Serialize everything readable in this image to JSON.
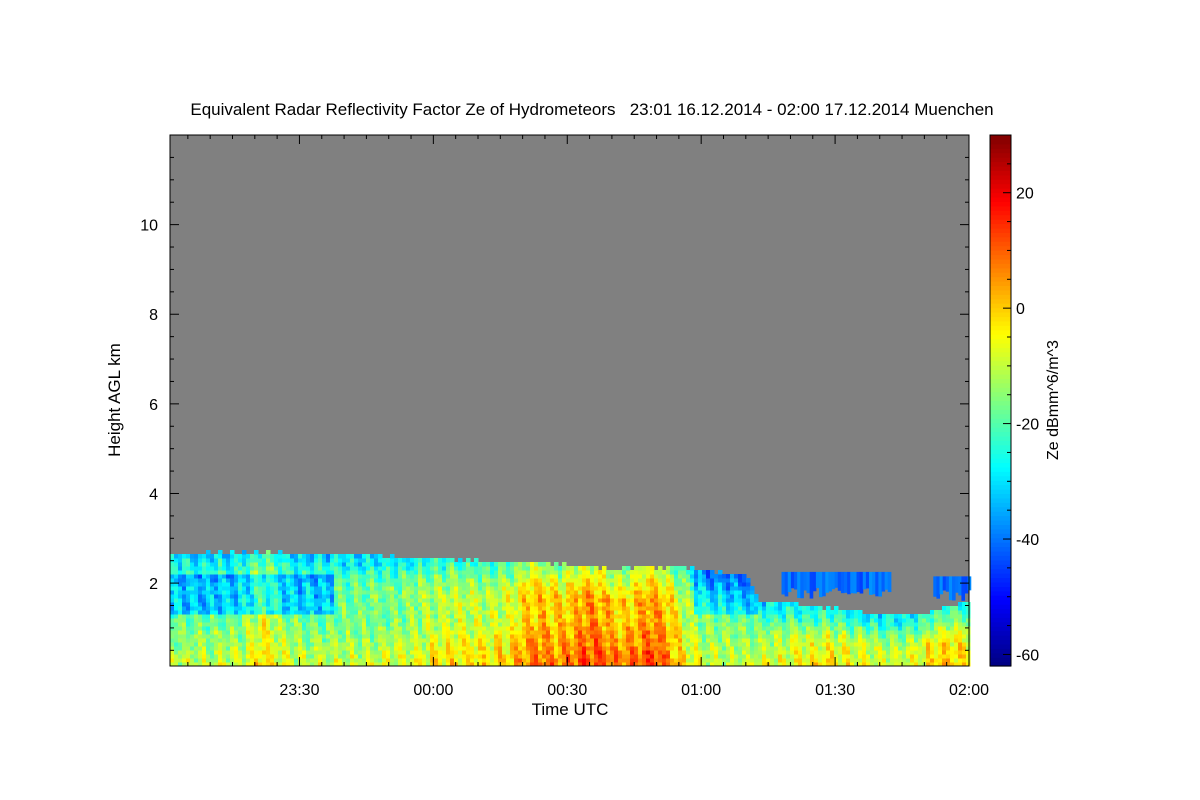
{
  "chart_data": {
    "type": "heatmap",
    "title": "Equivalent Radar Reflectivity Factor Ze of Hydrometeors   23:01 16.12.2014 - 02:00 17.12.2014 Muenchen",
    "xlabel": "Time UTC",
    "ylabel": "Height AGL km",
    "x_unit": "minutes since 00:00 UTC 17.12.2014",
    "xlim": [
      -59,
      120
    ],
    "x_ticks": [
      {
        "value": -30,
        "label": "23:30"
      },
      {
        "value": 0,
        "label": "00:00"
      },
      {
        "value": 30,
        "label": "00:30"
      },
      {
        "value": 60,
        "label": "01:00"
      },
      {
        "value": 90,
        "label": "01:30"
      },
      {
        "value": 120,
        "label": "02:00"
      }
    ],
    "ylim": [
      0.15,
      12.0
    ],
    "y_ticks": [
      {
        "value": 2,
        "label": "2"
      },
      {
        "value": 4,
        "label": "4"
      },
      {
        "value": 6,
        "label": "6"
      },
      {
        "value": 8,
        "label": "8"
      },
      {
        "value": 10,
        "label": "10"
      }
    ],
    "colorbar": {
      "label": "Ze dBmm^6/m^3",
      "range": [
        -62,
        30
      ],
      "ticks": [
        {
          "value": 20,
          "label": "20"
        },
        {
          "value": 0,
          "label": "0"
        },
        {
          "value": -20,
          "label": "-20"
        },
        {
          "value": -40,
          "label": "-40"
        },
        {
          "value": -60,
          "label": "-60"
        }
      ],
      "colormap": "jet"
    },
    "no_echo_color": "#808080",
    "cloud_top_km": {
      "time_min": [
        -59,
        -45,
        -30,
        -15,
        0,
        15,
        25,
        35,
        45,
        55,
        60,
        70,
        73,
        78,
        90,
        100,
        110,
        120
      ],
      "top": [
        2.65,
        2.68,
        2.68,
        2.62,
        2.55,
        2.5,
        2.45,
        2.35,
        2.35,
        2.35,
        2.3,
        2.2,
        1.6,
        1.55,
        1.45,
        1.3,
        1.35,
        1.6
      ]
    },
    "upper_layer": {
      "time_range": [
        78,
        102
      ],
      "base_km": 1.9,
      "top_km": 2.25,
      "ze_dbz": -45
    },
    "upper_layer_end": {
      "time_range": [
        112,
        120
      ],
      "base_km": 1.85,
      "top_km": 2.15,
      "ze_dbz": -45
    }
  }
}
